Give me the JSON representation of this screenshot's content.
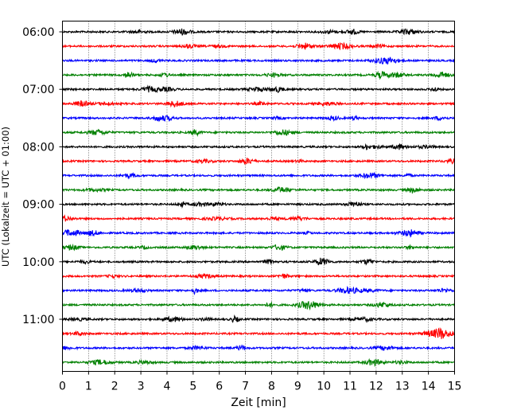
{
  "chart_data": {
    "type": "line",
    "subtype": "helicorder",
    "xlabel": "Zeit  [min]",
    "ylabel": "UTC (Lokalzeit = UTC + 01:00)",
    "xlim": [
      0,
      15
    ],
    "x_ticks": [
      "0",
      "1",
      "2",
      "3",
      "4",
      "5",
      "6",
      "7",
      "8",
      "9",
      "10",
      "11",
      "12",
      "13",
      "14",
      "15"
    ],
    "vertical_grid": "dotted, at every minute",
    "row_interval_minutes": 15,
    "y_ticks": [
      {
        "row": 0,
        "label": "06:00"
      },
      {
        "row": 4,
        "label": "07:00"
      },
      {
        "row": 8,
        "label": "08:00"
      },
      {
        "row": 12,
        "label": "09:00"
      },
      {
        "row": 16,
        "label": "10:00"
      },
      {
        "row": 20,
        "label": "11:00"
      }
    ],
    "trace_colors_cycle": [
      "#000000",
      "#ff0000",
      "#0000ff",
      "#008000"
    ],
    "series": [
      {
        "start": "06:00",
        "color": "#000000"
      },
      {
        "start": "06:15",
        "color": "#ff0000"
      },
      {
        "start": "06:30",
        "color": "#0000ff"
      },
      {
        "start": "06:45",
        "color": "#008000"
      },
      {
        "start": "07:00",
        "color": "#000000"
      },
      {
        "start": "07:15",
        "color": "#ff0000"
      },
      {
        "start": "07:30",
        "color": "#0000ff"
      },
      {
        "start": "07:45",
        "color": "#008000"
      },
      {
        "start": "08:00",
        "color": "#000000"
      },
      {
        "start": "08:15",
        "color": "#ff0000"
      },
      {
        "start": "08:30",
        "color": "#0000ff"
      },
      {
        "start": "08:45",
        "color": "#008000"
      },
      {
        "start": "09:00",
        "color": "#000000"
      },
      {
        "start": "09:15",
        "color": "#ff0000"
      },
      {
        "start": "09:30",
        "color": "#0000ff"
      },
      {
        "start": "09:45",
        "color": "#008000"
      },
      {
        "start": "10:00",
        "color": "#000000"
      },
      {
        "start": "10:15",
        "color": "#ff0000"
      },
      {
        "start": "10:30",
        "color": "#0000ff"
      },
      {
        "start": "10:45",
        "color": "#008000"
      },
      {
        "start": "11:00",
        "color": "#000000"
      },
      {
        "start": "11:15",
        "color": "#ff0000"
      },
      {
        "start": "11:30",
        "color": "#0000ff"
      },
      {
        "start": "11:45",
        "color": "#008000"
      }
    ]
  }
}
